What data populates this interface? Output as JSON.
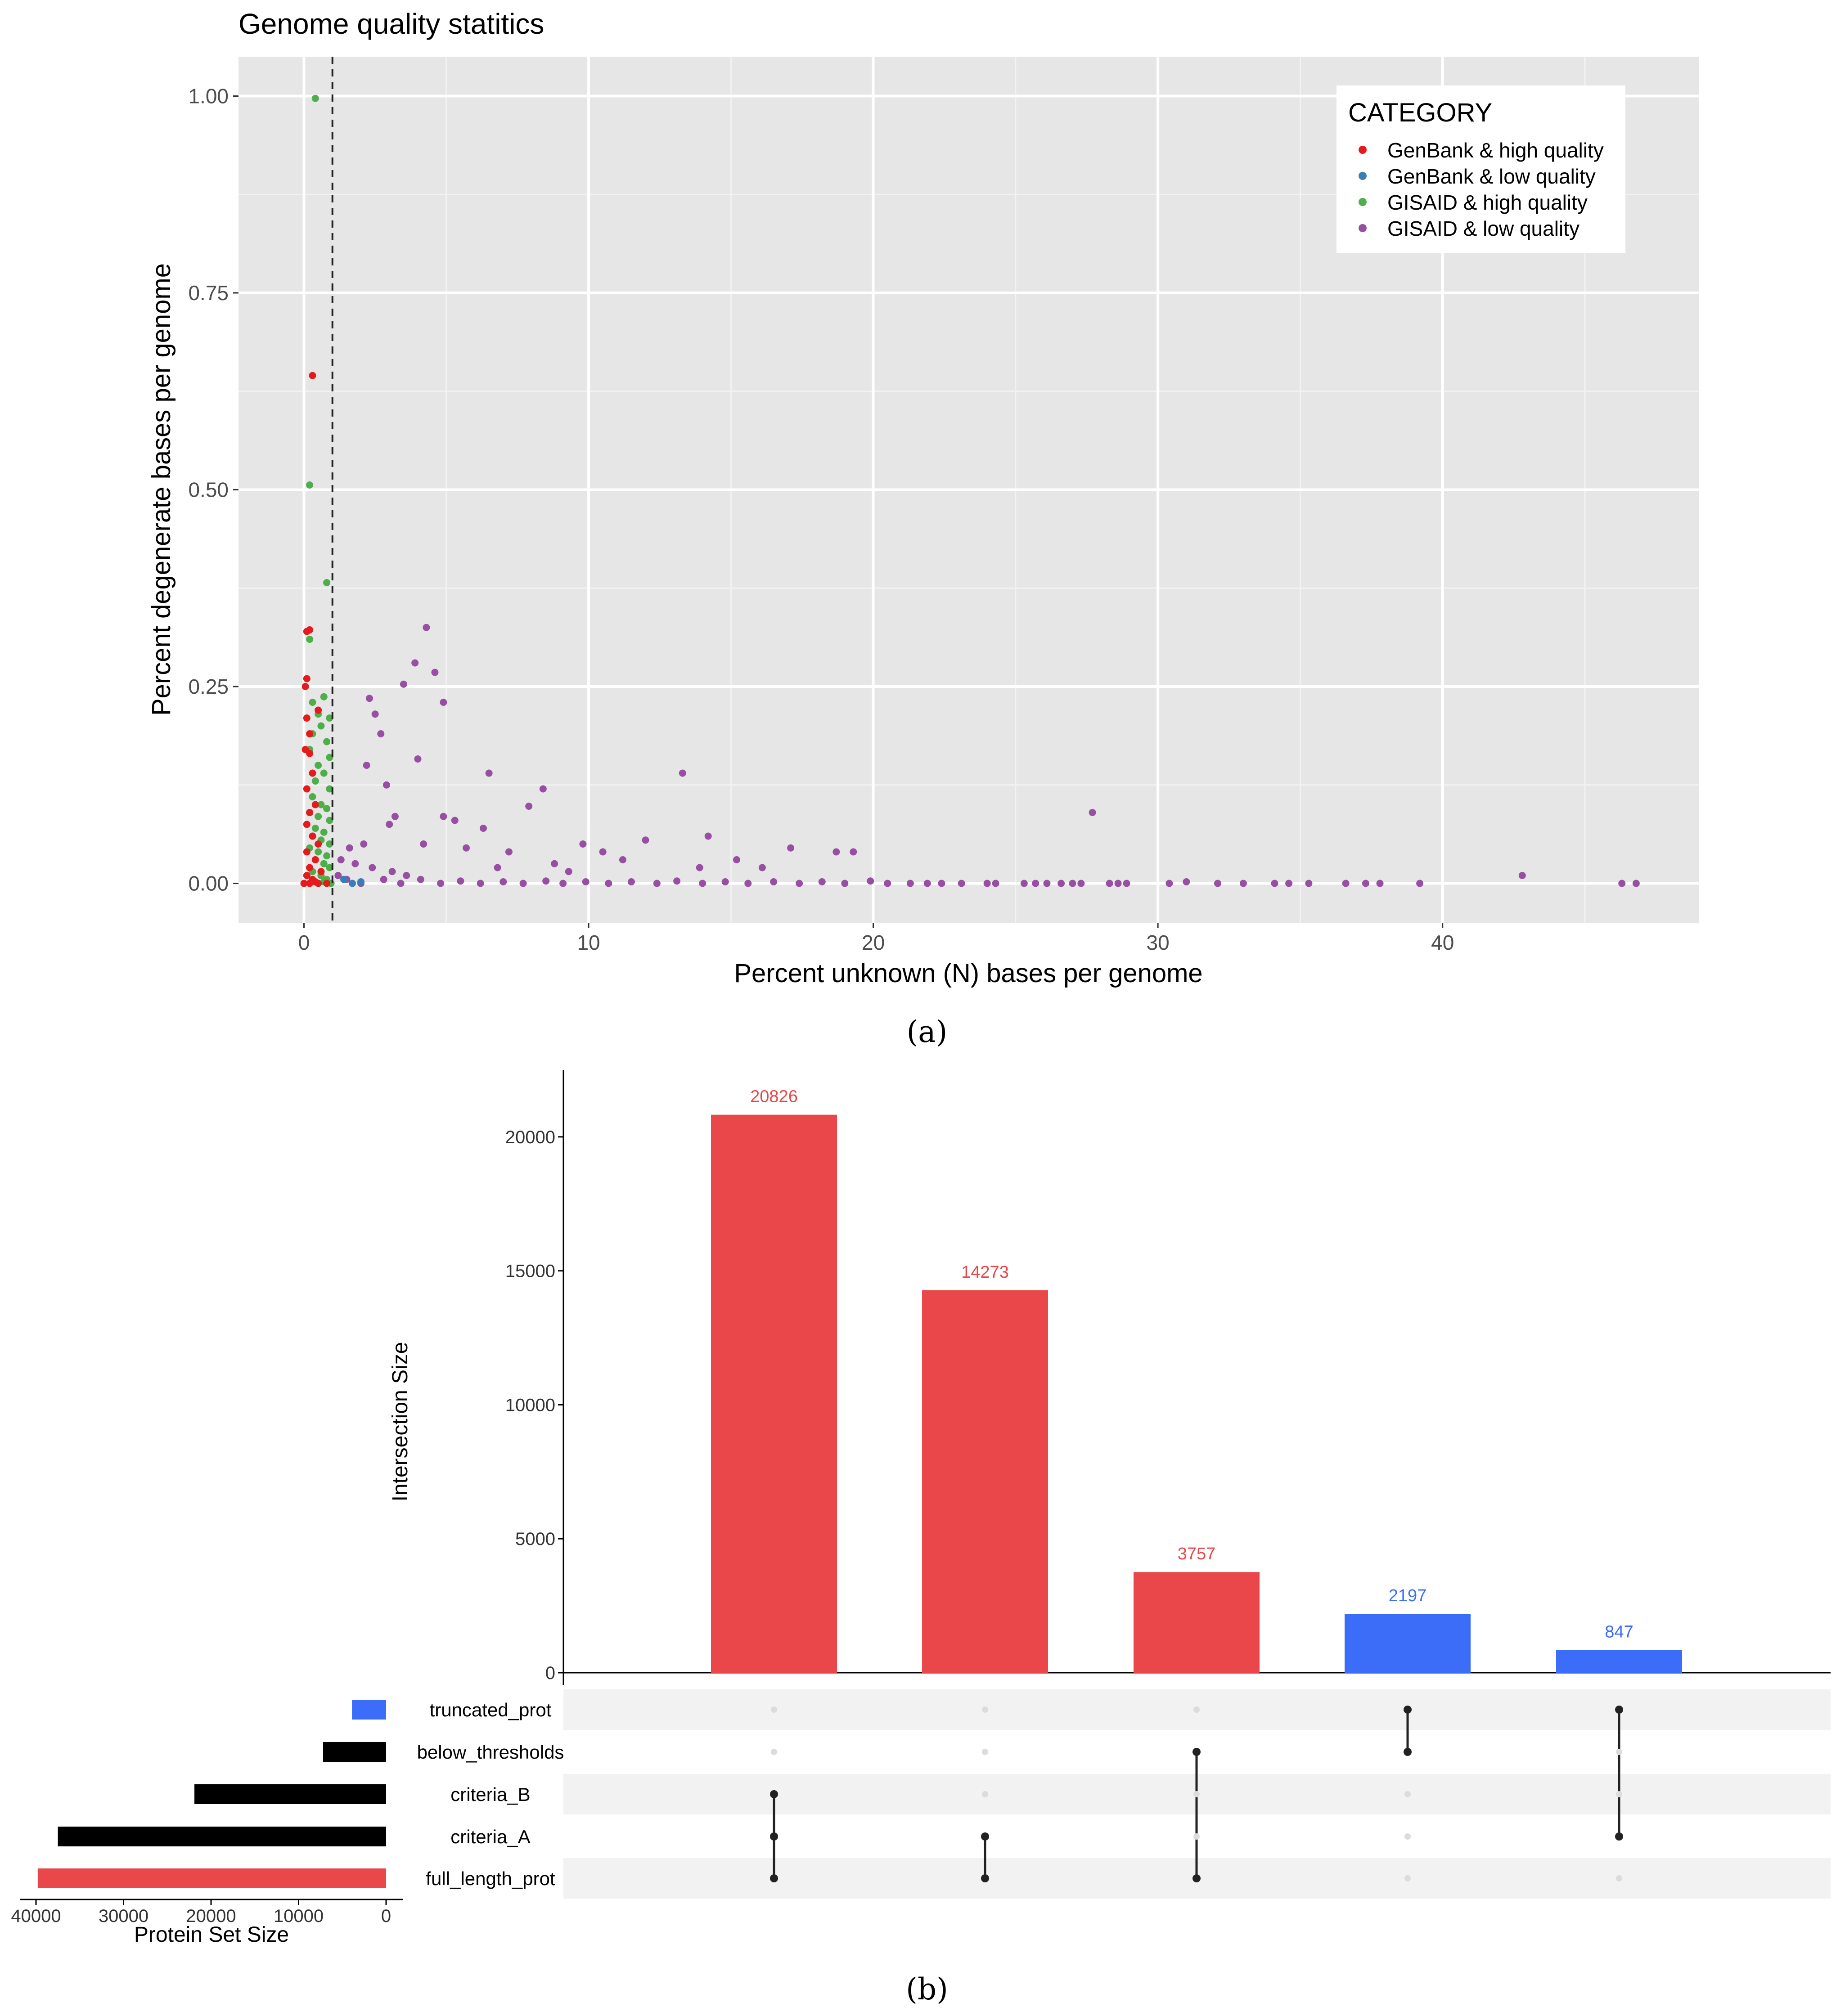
{
  "panel_labels": {
    "a": "(a)",
    "b": "(b)"
  },
  "chart_data": [
    {
      "type": "scatter",
      "title": "Genome quality statitics",
      "xlabel": "Percent unknown (N) bases per genome",
      "ylabel": "Percent degenerate bases per genome",
      "xlim": [
        -2.3,
        49.0
      ],
      "ylim": [
        -0.05,
        1.05
      ],
      "xticks": [
        0,
        10,
        20,
        30,
        40
      ],
      "yticks": [
        0.0,
        0.25,
        0.5,
        0.75,
        1.0
      ],
      "ytick_labels": [
        "0.00",
        "0.25",
        "0.50",
        "0.75",
        "1.00"
      ],
      "grid": true,
      "threshold_line": {
        "x": 1.0,
        "style": "dashed"
      },
      "legend": {
        "title": "CATEGORY",
        "placement": "top-right",
        "entries": [
          {
            "label": "GenBank & high quality",
            "color": "#e41a1c"
          },
          {
            "label": "GenBank & low quality",
            "color": "#377eb8"
          },
          {
            "label": "GISAID & high quality",
            "color": "#4daf4a"
          },
          {
            "label": "GISAID & low quality",
            "color": "#984ea3"
          }
        ]
      },
      "series": [
        {
          "name": "GenBank & high quality",
          "points": [
            [
              0.3,
              0.645
            ],
            [
              0.1,
              0.32
            ],
            [
              0.2,
              0.322
            ],
            [
              0.1,
              0.26
            ],
            [
              0.05,
              0.25
            ],
            [
              0.5,
              0.22
            ],
            [
              0.1,
              0.21
            ],
            [
              0.2,
              0.19
            ],
            [
              0.05,
              0.17
            ],
            [
              0.2,
              0.165
            ],
            [
              0.3,
              0.14
            ],
            [
              0.1,
              0.12
            ],
            [
              0.4,
              0.1
            ],
            [
              0.2,
              0.09
            ],
            [
              0.1,
              0.075
            ],
            [
              0.3,
              0.06
            ],
            [
              0.5,
              0.05
            ],
            [
              0.1,
              0.04
            ],
            [
              0.4,
              0.03
            ],
            [
              0.2,
              0.02
            ],
            [
              0.6,
              0.015
            ],
            [
              0.1,
              0.01
            ],
            [
              0.3,
              0.005
            ],
            [
              0.5,
              0.0
            ],
            [
              0.0,
              0.0
            ],
            [
              0.2,
              0.0
            ],
            [
              0.8,
              0.0
            ],
            [
              0.4,
              0.002
            ]
          ]
        },
        {
          "name": "GenBank & low quality",
          "points": [
            [
              1.7,
              0.0
            ],
            [
              1.4,
              0.005
            ],
            [
              2.0,
              0.002
            ]
          ]
        },
        {
          "name": "GISAID & high quality",
          "points": [
            [
              0.4,
              0.997
            ],
            [
              0.2,
              0.506
            ],
            [
              0.8,
              0.382
            ],
            [
              0.2,
              0.31
            ],
            [
              0.3,
              0.23
            ],
            [
              0.7,
              0.237
            ],
            [
              0.5,
              0.215
            ],
            [
              0.9,
              0.21
            ],
            [
              0.6,
              0.2
            ],
            [
              0.3,
              0.19
            ],
            [
              0.8,
              0.18
            ],
            [
              0.2,
              0.17
            ],
            [
              0.9,
              0.16
            ],
            [
              0.5,
              0.15
            ],
            [
              0.7,
              0.14
            ],
            [
              0.4,
              0.13
            ],
            [
              0.9,
              0.12
            ],
            [
              0.3,
              0.11
            ],
            [
              0.6,
              0.1
            ],
            [
              0.8,
              0.095
            ],
            [
              0.2,
              0.09
            ],
            [
              0.5,
              0.085
            ],
            [
              0.9,
              0.08
            ],
            [
              0.4,
              0.07
            ],
            [
              0.7,
              0.065
            ],
            [
              0.3,
              0.06
            ],
            [
              0.6,
              0.055
            ],
            [
              0.9,
              0.05
            ],
            [
              0.2,
              0.045
            ],
            [
              0.5,
              0.04
            ],
            [
              0.8,
              0.035
            ],
            [
              0.4,
              0.03
            ],
            [
              0.7,
              0.025
            ],
            [
              0.9,
              0.02
            ],
            [
              0.3,
              0.015
            ],
            [
              0.6,
              0.01
            ],
            [
              0.8,
              0.005
            ],
            [
              0.5,
              0.0
            ],
            [
              0.95,
              0.0
            ],
            [
              0.7,
              0.002
            ]
          ]
        },
        {
          "name": "GISAID & low quality",
          "points": [
            [
              4.3,
              0.325
            ],
            [
              3.9,
              0.28
            ],
            [
              4.6,
              0.268
            ],
            [
              3.5,
              0.253
            ],
            [
              2.3,
              0.235
            ],
            [
              4.9,
              0.23
            ],
            [
              2.5,
              0.215
            ],
            [
              2.7,
              0.19
            ],
            [
              4.0,
              0.158
            ],
            [
              2.2,
              0.15
            ],
            [
              6.5,
              0.14
            ],
            [
              13.3,
              0.14
            ],
            [
              2.9,
              0.125
            ],
            [
              8.4,
              0.12
            ],
            [
              7.9,
              0.098
            ],
            [
              27.7,
              0.09
            ],
            [
              3.2,
              0.085
            ],
            [
              4.9,
              0.085
            ],
            [
              5.3,
              0.08
            ],
            [
              3.0,
              0.075
            ],
            [
              6.3,
              0.07
            ],
            [
              14.2,
              0.06
            ],
            [
              9.8,
              0.05
            ],
            [
              12.0,
              0.055
            ],
            [
              17.1,
              0.045
            ],
            [
              18.7,
              0.04
            ],
            [
              19.3,
              0.04
            ],
            [
              2.1,
              0.05
            ],
            [
              1.6,
              0.045
            ],
            [
              4.2,
              0.05
            ],
            [
              5.7,
              0.045
            ],
            [
              7.2,
              0.04
            ],
            [
              10.5,
              0.04
            ],
            [
              15.2,
              0.03
            ],
            [
              11.2,
              0.03
            ],
            [
              8.8,
              0.025
            ],
            [
              16.1,
              0.02
            ],
            [
              13.9,
              0.02
            ],
            [
              6.8,
              0.02
            ],
            [
              9.3,
              0.015
            ],
            [
              1.3,
              0.03
            ],
            [
              1.8,
              0.025
            ],
            [
              2.4,
              0.02
            ],
            [
              3.1,
              0.015
            ],
            [
              3.6,
              0.01
            ],
            [
              1.2,
              0.01
            ],
            [
              1.5,
              0.005
            ],
            [
              2.0,
              0.0
            ],
            [
              2.8,
              0.005
            ],
            [
              3.4,
              0.0
            ],
            [
              4.1,
              0.005
            ],
            [
              4.8,
              0.0
            ],
            [
              5.5,
              0.003
            ],
            [
              6.2,
              0.0
            ],
            [
              7.0,
              0.002
            ],
            [
              7.7,
              0.0
            ],
            [
              8.5,
              0.003
            ],
            [
              9.1,
              0.0
            ],
            [
              9.9,
              0.002
            ],
            [
              10.7,
              0.0
            ],
            [
              11.5,
              0.002
            ],
            [
              12.4,
              0.0
            ],
            [
              13.1,
              0.003
            ],
            [
              14.0,
              0.0
            ],
            [
              14.8,
              0.002
            ],
            [
              15.6,
              0.0
            ],
            [
              16.5,
              0.002
            ],
            [
              17.4,
              0.0
            ],
            [
              18.2,
              0.002
            ],
            [
              19.0,
              0.0
            ],
            [
              19.9,
              0.003
            ],
            [
              20.5,
              0.0
            ],
            [
              21.3,
              0.0
            ],
            [
              21.9,
              0.0
            ],
            [
              22.4,
              0.0
            ],
            [
              23.1,
              0.0
            ],
            [
              24.0,
              0.0
            ],
            [
              24.3,
              0.0
            ],
            [
              25.3,
              0.0
            ],
            [
              25.7,
              0.0
            ],
            [
              26.1,
              0.0
            ],
            [
              26.6,
              0.0
            ],
            [
              27.0,
              0.0
            ],
            [
              27.3,
              0.0
            ],
            [
              28.3,
              0.0
            ],
            [
              28.6,
              0.0
            ],
            [
              28.9,
              0.0
            ],
            [
              30.4,
              0.0
            ],
            [
              31.0,
              0.002
            ],
            [
              32.1,
              0.0
            ],
            [
              33.0,
              0.0
            ],
            [
              34.1,
              0.0
            ],
            [
              34.6,
              0.0
            ],
            [
              35.3,
              0.0
            ],
            [
              36.6,
              0.0
            ],
            [
              37.3,
              0.0
            ],
            [
              37.8,
              0.0
            ],
            [
              39.2,
              0.0
            ],
            [
              42.8,
              0.01
            ],
            [
              46.3,
              0.0
            ],
            [
              46.8,
              0.0
            ]
          ]
        }
      ]
    },
    {
      "type": "bar",
      "title": "",
      "ylabel": "Intersection Size",
      "ylim": [
        0,
        22500
      ],
      "yticks": [
        0,
        5000,
        10000,
        15000,
        20000
      ],
      "values": [
        20826,
        14273,
        3757,
        2197,
        847
      ],
      "bar_colors": [
        "#e9474a",
        "#e9474a",
        "#e9474a",
        "#3c6df8",
        "#3c6df8"
      ],
      "sets": [
        "truncated_prot",
        "below_thresholds",
        "criteria_B",
        "criteria_A",
        "full_length_prot"
      ],
      "intersections": [
        [
          "criteria_B",
          "criteria_A",
          "full_length_prot"
        ],
        [
          "criteria_A",
          "full_length_prot"
        ],
        [
          "below_thresholds",
          "full_length_prot"
        ],
        [
          "truncated_prot",
          "below_thresholds"
        ],
        [
          "truncated_prot",
          "criteria_A"
        ]
      ]
    },
    {
      "type": "bar",
      "orientation": "horizontal",
      "title": "",
      "xlabel": "Protein Set Size",
      "categories": [
        "truncated_prot",
        "below_thresholds",
        "criteria_B",
        "criteria_A",
        "full_length_prot"
      ],
      "values": [
        3900,
        7200,
        21900,
        37500,
        39800
      ],
      "bar_colors": [
        "#3c6df8",
        "#000000",
        "#000000",
        "#000000",
        "#e9474a"
      ],
      "xlim": [
        0,
        41500
      ],
      "xticks": [
        40000,
        30000,
        20000,
        10000,
        0
      ]
    }
  ]
}
